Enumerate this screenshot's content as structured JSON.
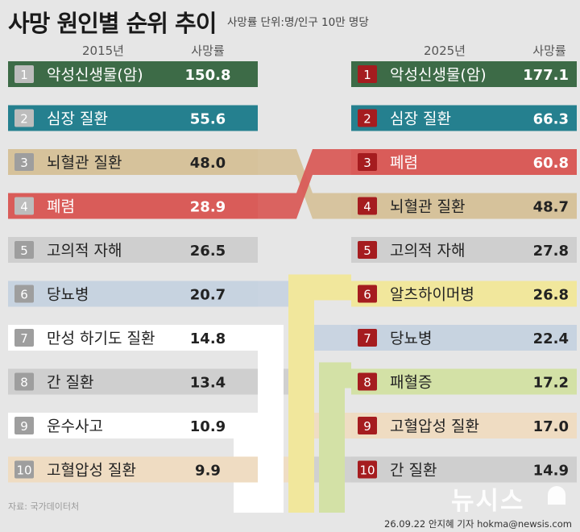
{
  "title": "사망 원인별 순위 추이",
  "unit_note": "사망률 단위:명/인구 10만 명당",
  "source": "자료: 국가데이터처",
  "credit": "26.09.22 안지혜 기자 hokma@newsis.com",
  "logo_text": "뉴시스",
  "colors": {
    "악성신생물(암)": "#3d6b47",
    "심장 질환": "#25808f",
    "뇌혈관 질환": "#d6c29b",
    "폐렴": "#d95c59",
    "고의적 자해": "#cfcfcf",
    "당뇨병": "#c7d3e0",
    "만성 하기도 질환": "#ffffff",
    "간 질환": "#cfcfcf",
    "운수사고": "#ffffff",
    "고혈압성 질환": "#efdcc2",
    "알츠하이머병": "#f1e79c",
    "패혈증": "#d3e1a6"
  },
  "chart_data": {
    "type": "table",
    "title": "사망 원인별 순위 추이",
    "columns": {
      "left_year": "2015년",
      "right_year": "2025년",
      "rate_label": "사망률"
    },
    "series": [
      {
        "name": "2015년",
        "rows": [
          {
            "rank": "1",
            "cause": "악성신생물(암)",
            "rate": "150.8"
          },
          {
            "rank": "2",
            "cause": "심장 질환",
            "rate": "55.6"
          },
          {
            "rank": "3",
            "cause": "뇌혈관 질환",
            "rate": "48.0"
          },
          {
            "rank": "4",
            "cause": "폐렴",
            "rate": "28.9"
          },
          {
            "rank": "5",
            "cause": "고의적 자해",
            "rate": "26.5"
          },
          {
            "rank": "6",
            "cause": "당뇨병",
            "rate": "20.7"
          },
          {
            "rank": "7",
            "cause": "만성 하기도 질환",
            "rate": "14.8"
          },
          {
            "rank": "8",
            "cause": "간 질환",
            "rate": "13.4"
          },
          {
            "rank": "9",
            "cause": "운수사고",
            "rate": "10.9"
          },
          {
            "rank": "10",
            "cause": "고혈압성 질환",
            "rate": "9.9"
          }
        ]
      },
      {
        "name": "2025년",
        "rows": [
          {
            "rank": "1",
            "cause": "악성신생물(암)",
            "rate": "177.1"
          },
          {
            "rank": "2",
            "cause": "심장 질환",
            "rate": "66.3"
          },
          {
            "rank": "3",
            "cause": "폐렴",
            "rate": "60.8"
          },
          {
            "rank": "4",
            "cause": "뇌혈관 질환",
            "rate": "48.7"
          },
          {
            "rank": "5",
            "cause": "고의적 자해",
            "rate": "27.8"
          },
          {
            "rank": "6",
            "cause": "알츠하이머병",
            "rate": "26.8"
          },
          {
            "rank": "7",
            "cause": "당뇨병",
            "rate": "22.4"
          },
          {
            "rank": "8",
            "cause": "패혈증",
            "rate": "17.2"
          },
          {
            "rank": "9",
            "cause": "고혈압성 질환",
            "rate": "17.0"
          },
          {
            "rank": "10",
            "cause": "간 질환",
            "rate": "14.9"
          }
        ]
      }
    ]
  }
}
